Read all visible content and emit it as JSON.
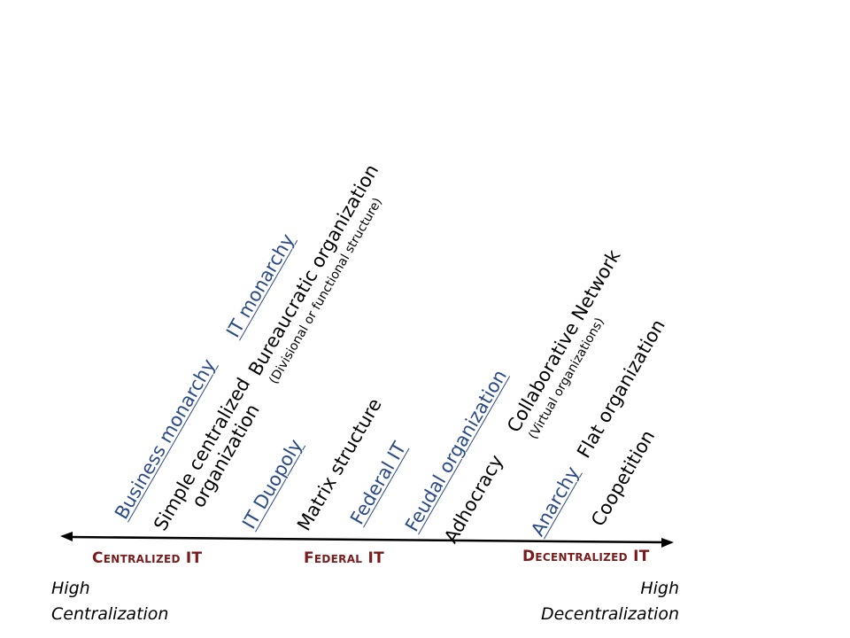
{
  "governance_models": [
    {
      "label": "Business monarchy"
    },
    {
      "label": "IT monarchy"
    },
    {
      "label": "IT Duopoly"
    },
    {
      "label": "Federal IT"
    },
    {
      "label": "Feudal organization"
    },
    {
      "label": "Anarchy"
    }
  ],
  "org_structures": {
    "simple_centralized": {
      "line1": "Simple centralized",
      "line2": "organization"
    },
    "bureaucratic": {
      "line1": "Bureaucratic organization",
      "line2": "(Divisional or functional structure)"
    },
    "matrix": "Matrix structure",
    "adhocracy": "Adhocracy",
    "collaborative": {
      "line1": "Collaborative Network",
      "line2": "(Virtual organizations)"
    },
    "flat": "Flat organization",
    "coopetition": "Coopetition"
  },
  "axis": {
    "categories": [
      "Centralized IT",
      "Federal IT",
      "Decentralized IT"
    ],
    "left_extreme": {
      "line1": "High",
      "line2": "Centralization"
    },
    "right_extreme": {
      "line1": "High",
      "line2": "Decentralization"
    }
  },
  "colors": {
    "governance": "#2b4a8a",
    "category": "#7a1a1a",
    "text": "#000000"
  }
}
